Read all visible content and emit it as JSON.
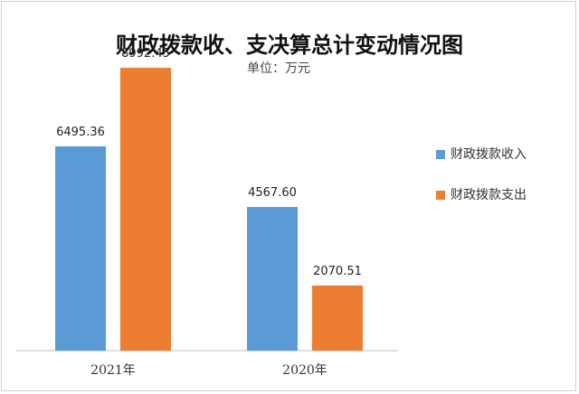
{
  "chart_data": {
    "type": "bar",
    "title": "财政拨款收、支决算总计变动情况图",
    "subtitle": "单位：万元",
    "categories": [
      "2021年",
      "2020年"
    ],
    "series": [
      {
        "name": "财政拨款收入",
        "color": "#5b9bd5",
        "values": [
          6495.36,
          4567.6
        ],
        "labels": [
          "6495.36",
          "4567.60"
        ]
      },
      {
        "name": "财政拨款支出",
        "color": "#ed7d31",
        "values": [
          8992.45,
          2070.51
        ],
        "labels": [
          "8992.45",
          "2070.51"
        ]
      }
    ],
    "ylim": [
      0,
      10000
    ],
    "grid": false,
    "legend_position": "right"
  }
}
